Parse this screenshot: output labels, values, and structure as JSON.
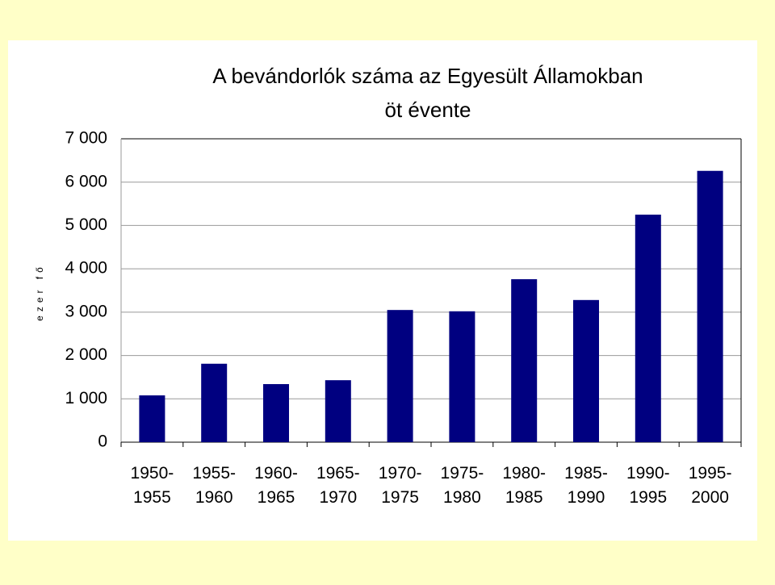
{
  "chart_data": {
    "type": "bar",
    "title": "A bevándorlók száma az Egyesült Államokban",
    "subtitle": "öt évente",
    "y_label": "ezer fő",
    "categories": [
      "1950- 1955",
      "1955- 1960",
      "1960- 1965",
      "1965- 1970",
      "1970- 1975",
      "1975- 1980",
      "1980- 1985",
      "1985- 1990",
      "1990- 1995",
      "1995- 2000"
    ],
    "values": [
      1080,
      1810,
      1340,
      1430,
      3050,
      3020,
      3760,
      3280,
      5250,
      6260
    ],
    "color": "#000080",
    "ylim": [
      0,
      7000
    ],
    "yticks": [
      0,
      {
        "value": 1000,
        "label": "1 000"
      },
      {
        "value": 2000,
        "label": "2 000"
      },
      {
        "value": 3000,
        "label": "3 000"
      },
      {
        "value": 4000,
        "label": "4 000"
      },
      {
        "value": 5000,
        "label": "5 000"
      },
      {
        "value": 6000,
        "label": "6 000"
      },
      {
        "value": 7000,
        "label": "7 000"
      }
    ],
    "grid": true
  }
}
